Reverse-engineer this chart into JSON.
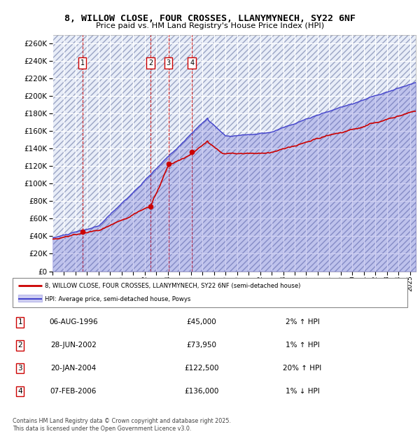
{
  "title": "8, WILLOW CLOSE, FOUR CROSSES, LLANYMYNECH, SY22 6NF",
  "subtitle": "Price paid vs. HM Land Registry's House Price Index (HPI)",
  "xlim": [
    1994.0,
    2025.5
  ],
  "ylim": [
    0,
    270000
  ],
  "yticks": [
    0,
    20000,
    40000,
    60000,
    80000,
    100000,
    120000,
    140000,
    160000,
    180000,
    200000,
    220000,
    240000,
    260000
  ],
  "plot_bg_color": "#e8edf8",
  "grid_color": "#ffffff",
  "red_color": "#cc0000",
  "blue_color": "#4444cc",
  "sales": [
    {
      "num": 1,
      "date_dec": 1996.59,
      "price": 45000
    },
    {
      "num": 2,
      "date_dec": 2002.49,
      "price": 73950
    },
    {
      "num": 3,
      "date_dec": 2004.05,
      "price": 122500
    },
    {
      "num": 4,
      "date_dec": 2006.09,
      "price": 136000
    }
  ],
  "legend1_label": "8, WILLOW CLOSE, FOUR CROSSES, LLANYMYNECH, SY22 6NF (semi-detached house)",
  "legend2_label": "HPI: Average price, semi-detached house, Powys",
  "footer": "Contains HM Land Registry data © Crown copyright and database right 2025.\nThis data is licensed under the Open Government Licence v3.0.",
  "table_rows": [
    {
      "num": 1,
      "date": "06-AUG-1996",
      "price": "£45,000",
      "pct": "2% ↑ HPI"
    },
    {
      "num": 2,
      "date": "28-JUN-2002",
      "price": "£73,950",
      "pct": "1% ↑ HPI"
    },
    {
      "num": 3,
      "date": "20-JAN-2004",
      "price": "£122,500",
      "pct": "20% ↑ HPI"
    },
    {
      "num": 4,
      "date": "07-FEB-2006",
      "price": "£136,000",
      "pct": "1% ↓ HPI"
    }
  ]
}
